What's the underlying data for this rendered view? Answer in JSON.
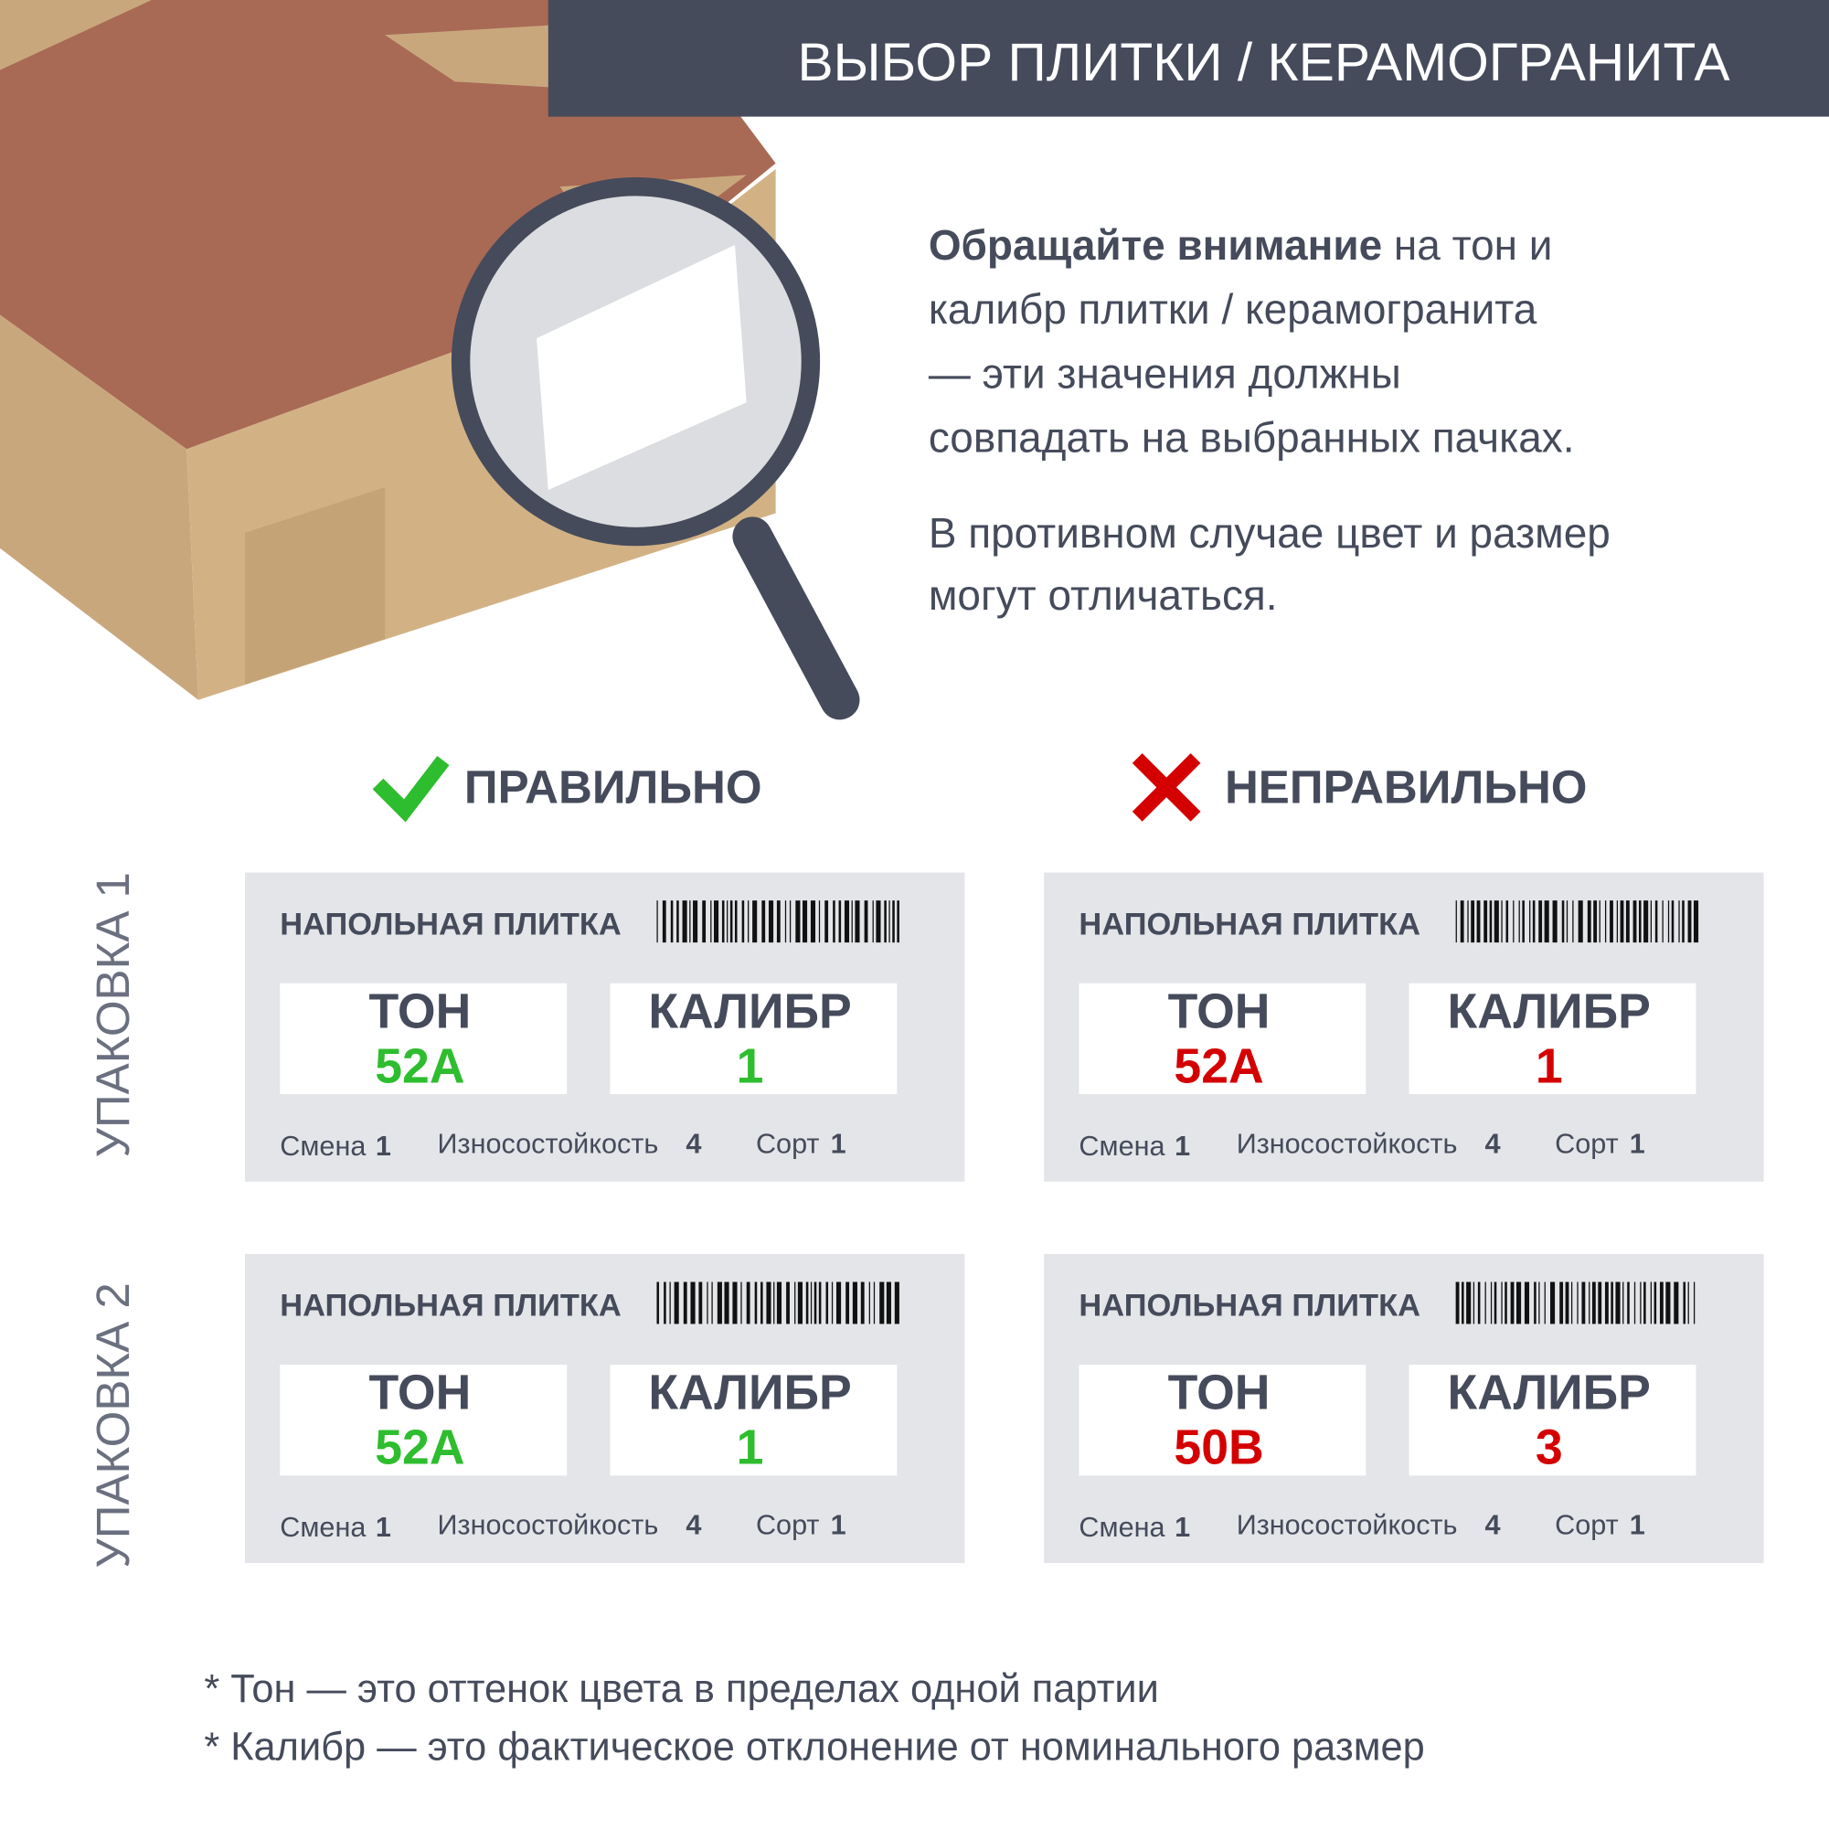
{
  "header": {
    "title": "ВЫБОР ПЛИТКИ / КЕРАМОГРАНИТА"
  },
  "intro": {
    "bold": "Обращайте внимание",
    "lines": [
      "на тон и",
      "калибр плитки / керамогранита",
      "— эти значения должны",
      "совпадать на выбранных пачках."
    ]
  },
  "note": {
    "lines": [
      "В противном случае цвет и размер",
      "могут отличаться."
    ]
  },
  "columns": [
    "ПРАВИЛЬНО",
    "НЕПРАВИЛЬНО"
  ],
  "rows": [
    "УПАКОВКА 1",
    "УПАКОВКА 2"
  ],
  "cards": [
    {
      "title": "НАПОЛЬНАЯ ПЛИТКА",
      "tone_label": "ТОН",
      "tone": "52A",
      "caliber_label": "КАЛИБР",
      "caliber": 1,
      "color": "#2ebd2e",
      "shift_label": "Смена",
      "shift": 1,
      "wear_label": "Износостойкость",
      "wear": 4,
      "grade_label": "Сорт",
      "grade": 1
    },
    {
      "title": "НАПОЛЬНАЯ ПЛИТКА",
      "tone_label": "ТОН",
      "tone": "52A",
      "caliber_label": "КАЛИБР",
      "caliber": 1,
      "color": "#d40000",
      "shift_label": "Смена",
      "shift": 1,
      "wear_label": "Износостойкость",
      "wear": 4,
      "grade_label": "Сорт",
      "grade": 1
    },
    {
      "title": "НАПОЛЬНАЯ ПЛИТКА",
      "tone_label": "ТОН",
      "tone": "52A",
      "caliber_label": "КАЛИБР",
      "caliber": 1,
      "color": "#2ebd2e",
      "shift_label": "Смена",
      "shift": 1,
      "wear_label": "Износостойкость",
      "wear": 4,
      "grade_label": "Сорт",
      "grade": 1
    },
    {
      "title": "НАПОЛЬНАЯ ПЛИТКА",
      "tone_label": "ТОН",
      "tone": "50B",
      "caliber_label": "КАЛИБР",
      "caliber": 3,
      "color": "#d40000",
      "shift_label": "Смена",
      "shift": 1,
      "wear_label": "Износостойкость",
      "wear": 4,
      "grade_label": "Сорт",
      "grade": 1
    }
  ],
  "footnotes": [
    "*  Тон  — это оттенок цвета в пределах одной партии",
    "*  Калибр  — это фактическое отклонение от номинального размер"
  ]
}
